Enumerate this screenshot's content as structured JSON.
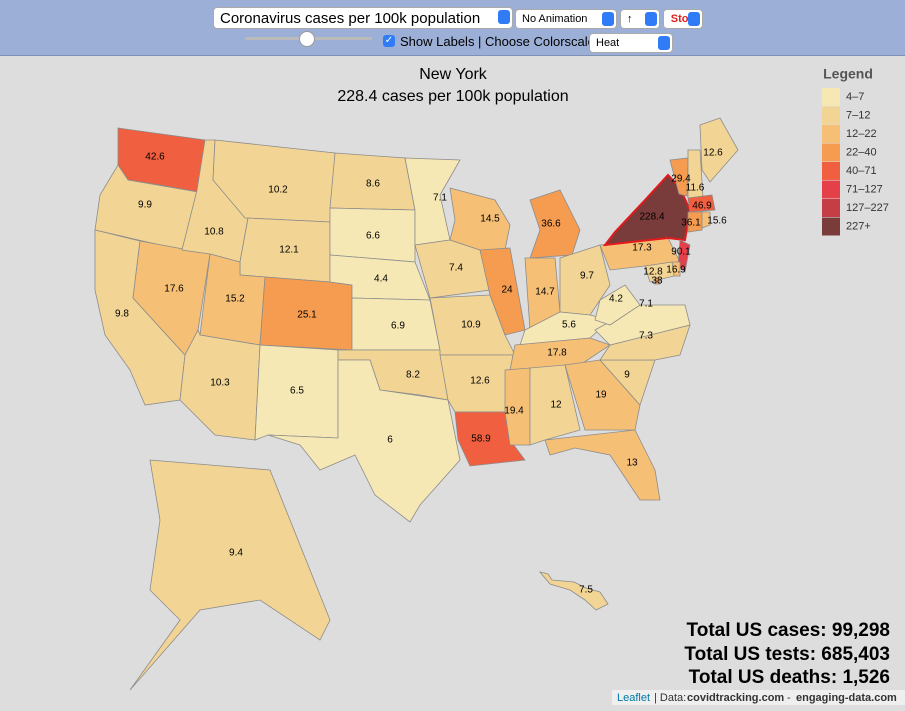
{
  "toolbar": {
    "metric": "Coronavirus cases per 100k population",
    "animation": "No Animation",
    "direction": "↑",
    "stop": "Stop",
    "show_labels": "Show Labels | Choose Colorscale:",
    "colorscale": "Heat"
  },
  "map": {
    "title": "New York",
    "subtitle": "228.4 cases per 100k population",
    "legend": {
      "title": "Legend",
      "entries": [
        {
          "label": "4–7",
          "color": "#f6e8b4"
        },
        {
          "label": "7–12",
          "color": "#f2d594"
        },
        {
          "label": "12–22",
          "color": "#f6bf76"
        },
        {
          "label": "22–40",
          "color": "#f59c50"
        },
        {
          "label": "40–71",
          "color": "#ef5f40"
        },
        {
          "label": "71–127",
          "color": "#e3404a"
        },
        {
          "label": "127–227",
          "color": "#c53d45"
        },
        {
          "label": "227+",
          "color": "#7a3b3b"
        }
      ]
    },
    "states": [
      {
        "value": 42.6,
        "color": "#ef5f40"
      },
      {
        "value": 9.9,
        "color": "#f2d594"
      },
      {
        "value": 9.8,
        "color": "#f2d594"
      },
      {
        "value": 17.6,
        "color": "#f6bf76"
      },
      {
        "value": 10.8,
        "color": "#f2d594"
      },
      {
        "value": 10.2,
        "color": "#f2d594"
      },
      {
        "value": 12.1,
        "color": "#f2d594"
      },
      {
        "value": 15.2,
        "color": "#f6bf76"
      },
      {
        "value": 25.1,
        "color": "#f59c50"
      },
      {
        "value": 10.3,
        "color": "#f2d594"
      },
      {
        "value": 6.5,
        "color": "#f6e8b4"
      },
      {
        "value": 8.6,
        "color": "#f2d594"
      },
      {
        "value": 6.6,
        "color": "#f6e8b4"
      },
      {
        "value": 4.4,
        "color": "#f6e8b4"
      },
      {
        "value": 6.9,
        "color": "#f6e8b4"
      },
      {
        "value": 8.2,
        "color": "#f2d594"
      },
      {
        "value": 6,
        "color": "#f6e8b4"
      },
      {
        "value": 7.1,
        "color": "#f6e8b4"
      },
      {
        "value": 7.4,
        "color": "#f2d594"
      },
      {
        "value": 10.9,
        "color": "#f2d594"
      },
      {
        "value": 12.6,
        "color": "#f2d594"
      },
      {
        "value": 58.9,
        "color": "#ef5f40"
      },
      {
        "value": 14.5,
        "color": "#f6bf76"
      },
      {
        "value": 24,
        "color": "#f59c50"
      },
      {
        "value": 36.6,
        "color": "#f59c50"
      },
      {
        "value": 14.7,
        "color": "#f6bf76"
      },
      {
        "value": 9.7,
        "color": "#f2d594"
      },
      {
        "value": 5.6,
        "color": "#f6e8b4"
      },
      {
        "value": 17.8,
        "color": "#f6bf76"
      },
      {
        "value": 19.4,
        "color": "#f6bf76"
      },
      {
        "value": 12,
        "color": "#f2d594"
      },
      {
        "value": 19,
        "color": "#f6bf76"
      },
      {
        "value": 13,
        "color": "#f6bf76"
      },
      {
        "value": 9,
        "color": "#f2d594"
      },
      {
        "value": 7.3,
        "color": "#f2d594"
      },
      {
        "value": 7.1,
        "color": "#f6e8b4"
      },
      {
        "value": 4.2,
        "color": "#f6e8b4"
      },
      {
        "value": 17.3,
        "color": "#f6bf76"
      },
      {
        "value": 228.4,
        "color": "#7a3b3b",
        "stroke": "#e31a1c"
      },
      {
        "value": 90.1,
        "color": "#e3404a"
      },
      {
        "value": 16.9,
        "color": "#f6bf76"
      },
      {
        "value": 12.8,
        "color": "#f2d594"
      },
      {
        "value": 38,
        "color": "#f59c50"
      },
      {
        "value": 29.4,
        "color": "#f59c50"
      },
      {
        "value": 11.6,
        "color": "#f2d594"
      },
      {
        "value": 12.6,
        "color": "#f2d594"
      },
      {
        "value": 46.9,
        "color": "#ef5f40"
      },
      {
        "value": 36.1,
        "color": "#f59c50"
      },
      {
        "value": 15.6,
        "color": "#f6bf76"
      },
      {
        "value": 9.4,
        "color": "#f2d594"
      },
      {
        "value": 7.5,
        "color": "#f2d594"
      }
    ],
    "totals": [
      "Total US cases: 99,298",
      "Total US tests: 685,403",
      "Total US deaths: 1,526"
    ],
    "attribution": {
      "link": "Leaflet",
      "text": "| Data:",
      "source1": "covidtracking.com",
      "separator": "-",
      "source2": "engaging-data.com"
    }
  }
}
